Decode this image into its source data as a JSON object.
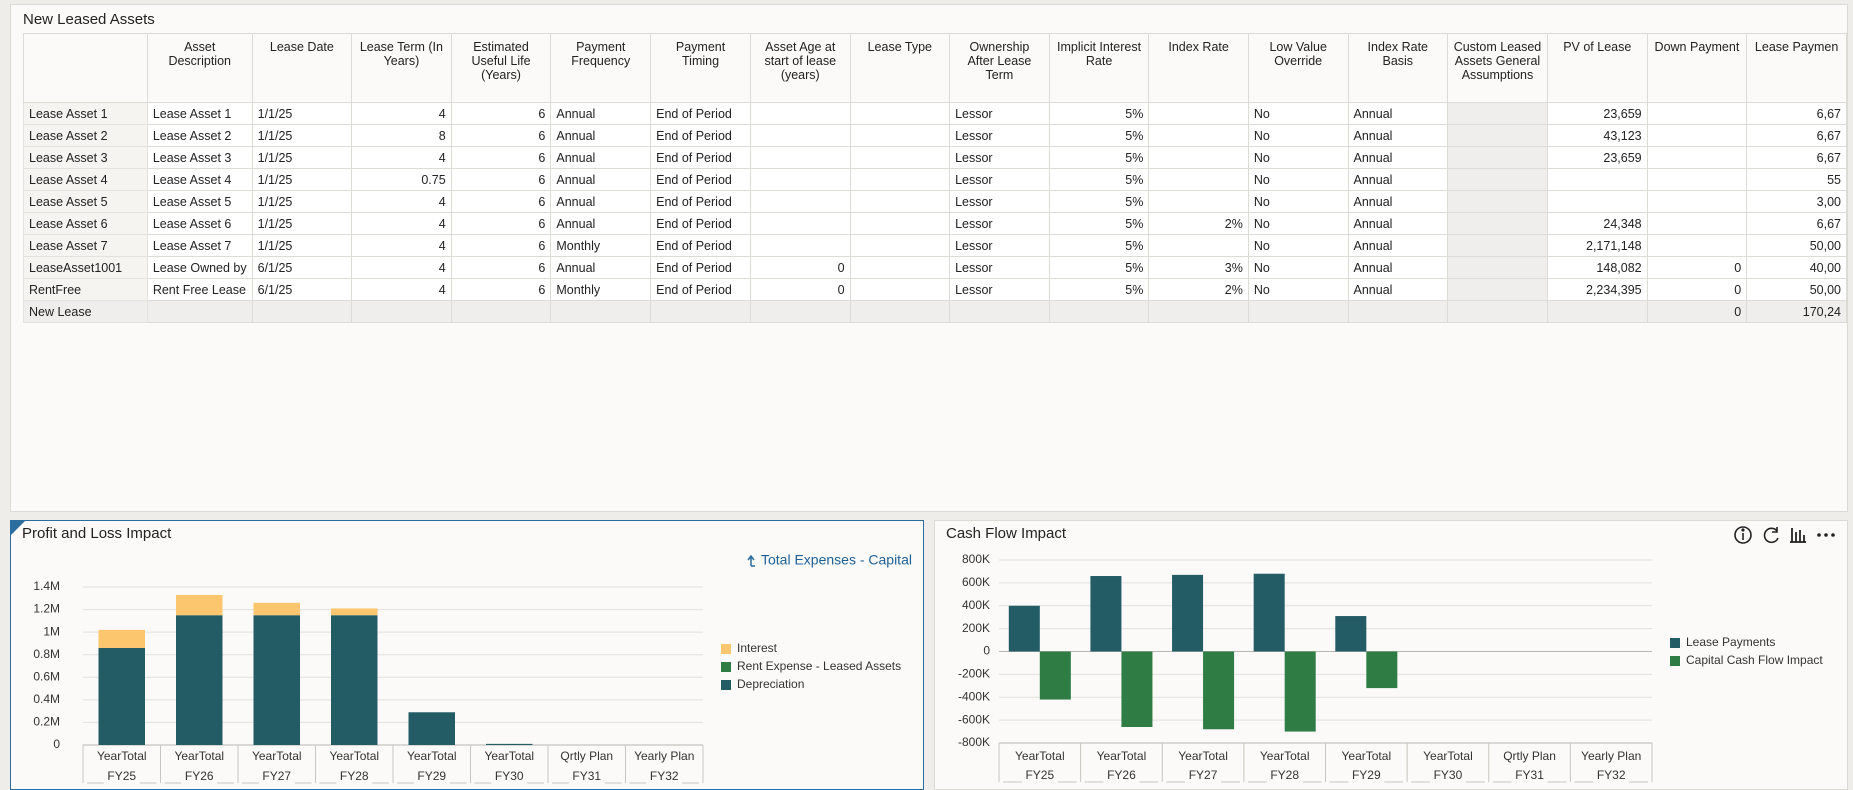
{
  "table": {
    "title": "New Leased Assets",
    "columns": [
      "Asset Description",
      "Lease Date",
      "Lease Term (In Years)",
      "Estimated Useful Life (Years)",
      "Payment Frequency",
      "Payment Timing",
      "Asset Age at start of lease (years)",
      "Lease Type",
      "Ownership After Lease Term",
      "Implicit Interest Rate",
      "Index Rate",
      "Low Value Override",
      "Index Rate Basis",
      "Custom Leased Assets General Assumptions",
      "PV of Lease",
      "Down Payment",
      "Lease Paymen"
    ],
    "rows": [
      {
        "label": "Lease Asset 1",
        "cells": [
          "Lease Asset 1",
          "1/1/25",
          "4",
          "6",
          "Annual",
          "End of Period",
          null,
          null,
          "Lessor",
          "5%",
          null,
          "No",
          "Annual",
          null,
          "23,659",
          null,
          "6,67"
        ]
      },
      {
        "label": "Lease Asset 2",
        "cells": [
          "Lease Asset 2",
          "1/1/25",
          "8",
          "6",
          "Annual",
          "End of Period",
          null,
          null,
          "Lessor",
          "5%",
          null,
          "No",
          "Annual",
          null,
          "43,123",
          null,
          "6,67"
        ]
      },
      {
        "label": "Lease Asset 3",
        "cells": [
          "Lease Asset 3",
          "1/1/25",
          "4",
          "6",
          "Annual",
          "End of Period",
          null,
          null,
          "Lessor",
          "5%",
          null,
          "No",
          "Annual",
          null,
          "23,659",
          null,
          "6,67"
        ]
      },
      {
        "label": "Lease Asset 4",
        "cells": [
          "Lease Asset 4",
          "1/1/25",
          "0.75",
          "6",
          "Annual",
          "End of Period",
          null,
          null,
          "Lessor",
          "5%",
          null,
          "No",
          "Annual",
          null,
          null,
          null,
          "55"
        ]
      },
      {
        "label": "Lease Asset 5",
        "cells": [
          "Lease Asset 5",
          "1/1/25",
          "4",
          "6",
          "Annual",
          "End of Period",
          null,
          null,
          "Lessor",
          "5%",
          null,
          "No",
          "Annual",
          null,
          null,
          null,
          "3,00"
        ]
      },
      {
        "label": "Lease Asset 6",
        "cells": [
          "Lease Asset 6",
          "1/1/25",
          "4",
          "6",
          "Annual",
          "End of Period",
          null,
          null,
          "Lessor",
          "5%",
          "2%",
          "No",
          "Annual",
          null,
          "24,348",
          null,
          "6,67"
        ]
      },
      {
        "label": "Lease Asset 7",
        "cells": [
          "Lease Asset 7",
          "1/1/25",
          "4",
          "6",
          "Monthly",
          "End of Period",
          null,
          null,
          "Lessor",
          "5%",
          null,
          "No",
          "Annual",
          null,
          "2,171,148",
          null,
          "50,00"
        ]
      },
      {
        "label": "LeaseAsset1001",
        "cells": [
          "Lease Owned by",
          "6/1/25",
          "4",
          "6",
          "Annual",
          "End of Period",
          "0",
          null,
          "Lessor",
          "5%",
          "3%",
          "No",
          "Annual",
          null,
          "148,082",
          "0",
          "40,00"
        ]
      },
      {
        "label": "RentFree",
        "cells": [
          "Rent Free Lease",
          "6/1/25",
          "4",
          "6",
          "Monthly",
          "End of Period",
          "0",
          null,
          "Lessor",
          "5%",
          "2%",
          "No",
          "Annual",
          null,
          "2,234,395",
          "0",
          "50,00"
        ]
      },
      {
        "label": "New Lease",
        "cells": [
          null,
          null,
          null,
          null,
          null,
          null,
          null,
          null,
          null,
          null,
          null,
          null,
          null,
          null,
          null,
          "0",
          "170,24"
        ]
      }
    ]
  },
  "chart_data": [
    {
      "type": "bar",
      "stacked": true,
      "title": "Profit and Loss Impact",
      "link": "Total Expenses - Capital",
      "categories": [
        "YearTotal",
        "YearTotal",
        "YearTotal",
        "YearTotal",
        "YearTotal",
        "YearTotal",
        "Qrtly Plan",
        "Yearly Plan"
      ],
      "category_groups": [
        "FY25",
        "FY26",
        "FY27",
        "FY28",
        "FY29",
        "FY30",
        "FY31",
        "FY32"
      ],
      "series": [
        {
          "name": "Depreciation",
          "color": "#245c66",
          "values": [
            860000,
            1150000,
            1150000,
            1150000,
            290000,
            10000,
            null,
            null
          ]
        },
        {
          "name": "Rent Expense - Leased Assets",
          "color": "#2f7d45",
          "values": [
            0,
            0,
            0,
            0,
            0,
            0,
            null,
            null
          ]
        },
        {
          "name": "Interest",
          "color": "#fbc66d",
          "values": [
            160000,
            180000,
            110000,
            60000,
            0,
            0,
            null,
            null
          ]
        }
      ],
      "ylim": [
        0,
        1400000
      ],
      "yticks": [
        0,
        {
          "value": 200000,
          "label": "0.2M"
        },
        {
          "value": 400000,
          "label": "0.4M"
        },
        {
          "value": 600000,
          "label": "0.6M"
        },
        {
          "value": 800000,
          "label": "0.8M"
        },
        {
          "value": 1000000,
          "label": "1M"
        },
        {
          "value": 1200000,
          "label": "1.2M"
        },
        {
          "value": 1400000,
          "label": "1.4M"
        }
      ],
      "grid": true,
      "legend": "right"
    },
    {
      "type": "bar",
      "stacked": false,
      "title": "Cash Flow Impact",
      "categories": [
        "YearTotal",
        "YearTotal",
        "YearTotal",
        "YearTotal",
        "YearTotal",
        "YearTotal",
        "Qrtly Plan",
        "Yearly Plan"
      ],
      "category_groups": [
        "FY25",
        "FY26",
        "FY27",
        "FY28",
        "FY29",
        "FY30",
        "FY31",
        "FY32"
      ],
      "series": [
        {
          "name": "Lease Payments",
          "color": "#245c66",
          "values": [
            400000,
            660000,
            670000,
            680000,
            310000,
            null,
            null,
            null
          ]
        },
        {
          "name": "Capital Cash Flow Impact",
          "color": "#2f7d45",
          "values": [
            -420000,
            -660000,
            -680000,
            -700000,
            -320000,
            null,
            null,
            null
          ]
        }
      ],
      "ylim": [
        -800000,
        800000
      ],
      "yticks": [
        {
          "value": 800000,
          "label": "800K"
        },
        {
          "value": 600000,
          "label": "600K"
        },
        {
          "value": 400000,
          "label": "400K"
        },
        {
          "value": 200000,
          "label": "200K"
        },
        0,
        {
          "value": -200000,
          "label": "-200K"
        },
        {
          "value": -400000,
          "label": "-400K"
        },
        {
          "value": -600000,
          "label": "-600K"
        },
        {
          "value": -800000,
          "label": "-800K"
        }
      ],
      "grid": true,
      "legend": "right"
    }
  ]
}
